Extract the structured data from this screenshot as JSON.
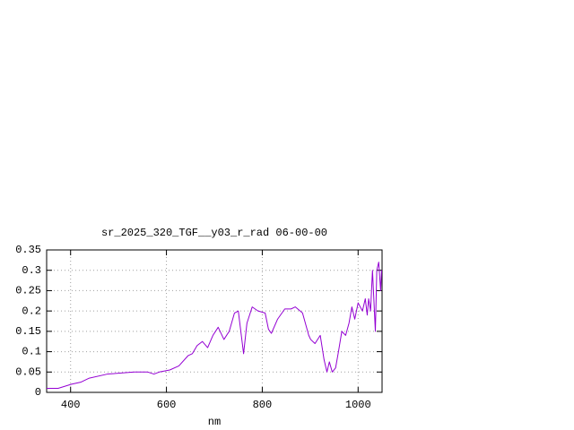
{
  "chart_data": {
    "type": "line",
    "title": "sr_2025_320_TGF__y03_r_rad 06-00-00",
    "x_label": "nm",
    "x": [
      350,
      374,
      402,
      421,
      439,
      477,
      533,
      561,
      574,
      585,
      607,
      626,
      645,
      654,
      664,
      675,
      686,
      697,
      708,
      720,
      731,
      742,
      750,
      761,
      768,
      779,
      791,
      806,
      813,
      819,
      832,
      847,
      860,
      869,
      884,
      897,
      901,
      910,
      921,
      929,
      935,
      940,
      946,
      953,
      959,
      966,
      974,
      981,
      987,
      993,
      1000,
      1009,
      1015,
      1019,
      1022,
      1026,
      1030,
      1036,
      1039,
      1043,
      1047,
      1049
    ],
    "series": [
      {
        "name": "sr_2025_320_TGF__y03_r_rad",
        "color": "#9400d3",
        "values": [
          0.01,
          0.01,
          0.02,
          0.025,
          0.035,
          0.045,
          0.05,
          0.05,
          0.045,
          0.05,
          0.055,
          0.065,
          0.09,
          0.095,
          0.115,
          0.125,
          0.11,
          0.14,
          0.16,
          0.13,
          0.15,
          0.195,
          0.2,
          0.095,
          0.17,
          0.21,
          0.2,
          0.195,
          0.155,
          0.145,
          0.18,
          0.205,
          0.205,
          0.21,
          0.195,
          0.14,
          0.13,
          0.12,
          0.14,
          0.08,
          0.05,
          0.075,
          0.05,
          0.06,
          0.1,
          0.15,
          0.14,
          0.17,
          0.21,
          0.18,
          0.22,
          0.2,
          0.23,
          0.19,
          0.23,
          0.2,
          0.3,
          0.15,
          0.3,
          0.32,
          0.25,
          0.3
        ]
      }
    ],
    "xlim": [
      350,
      1050
    ],
    "xticks": [
      400,
      600,
      800,
      1000
    ],
    "ylim": [
      0,
      0.35
    ],
    "yticks": [
      0,
      0.05,
      0.1,
      0.15,
      0.2,
      0.25,
      0.3,
      0.35
    ],
    "grid": true
  }
}
